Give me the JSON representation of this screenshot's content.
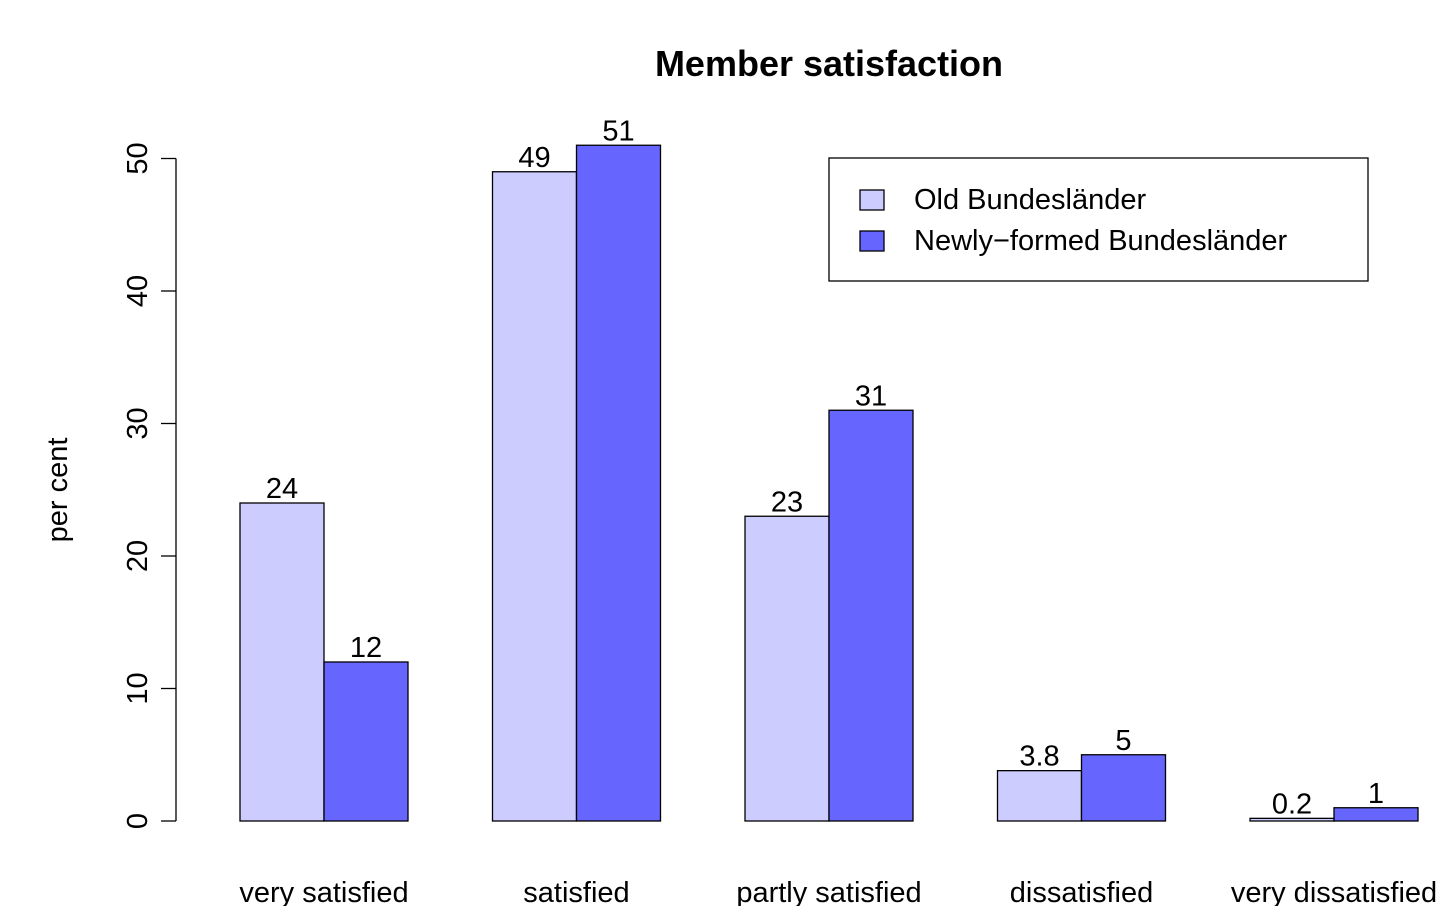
{
  "chart_data": {
    "type": "bar",
    "title": "Member satisfaction",
    "xlabel": "",
    "ylabel": "per cent",
    "ylim": [
      0,
      55
    ],
    "yticks": [
      0,
      10,
      20,
      30,
      40,
      50
    ],
    "grid": false,
    "legend_position": "top-right",
    "categories": [
      "very satisfied",
      "satisfied",
      "partly satisfied",
      "dissatisfied",
      "very dissatisfied"
    ],
    "series": [
      {
        "name": "Old Bundesländer",
        "color": "#ccccff",
        "values": [
          24,
          49,
          23,
          3.8,
          0.2
        ],
        "labels": [
          "24",
          "49",
          "23",
          "3.8",
          "0.2"
        ]
      },
      {
        "name": "Newly−formed Bundesländer",
        "color": "#6666ff",
        "values": [
          12,
          51,
          31,
          5,
          1
        ],
        "labels": [
          "12",
          "51",
          "31",
          "5",
          "1"
        ]
      }
    ]
  }
}
